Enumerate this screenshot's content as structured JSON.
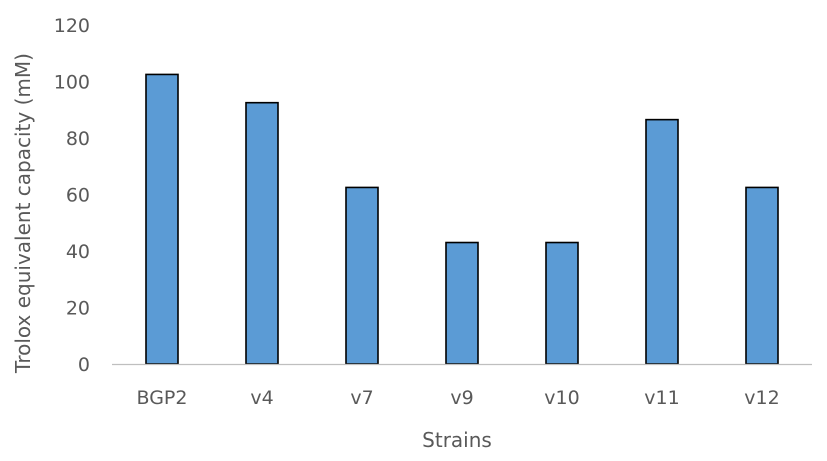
{
  "chart_data": {
    "type": "bar",
    "title": "",
    "xlabel": "Strains",
    "ylabel": "Trolox equivalent capacity (mM)",
    "categories": [
      "BGP2",
      "v4",
      "v7",
      "v9",
      "v10",
      "v11",
      "v12"
    ],
    "values": [
      102.5,
      92.5,
      62.5,
      43,
      43,
      86.5,
      62.5
    ],
    "ylim": [
      0,
      120
    ],
    "yticks": [
      "0",
      "20",
      "40",
      "60",
      "80",
      "100",
      "120"
    ],
    "grid": false,
    "legend": "none",
    "bar_color": "#5b9bd5",
    "bar_edge_color": "#000000",
    "axis_color": "#bfbfbf",
    "text_color": "#595959"
  }
}
